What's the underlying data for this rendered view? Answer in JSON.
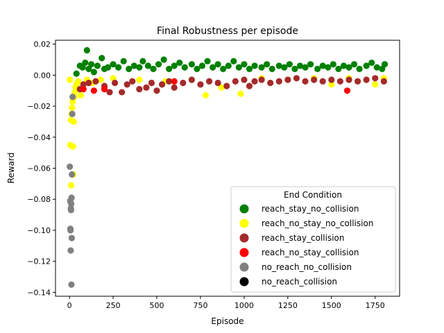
{
  "chart_data": {
    "type": "scatter",
    "title": "Final Robustness per episode",
    "xlabel": "Episode",
    "ylabel": "Reward",
    "xlim": [
      -80,
      1890
    ],
    "ylim": [
      -0.1425,
      0.0225
    ],
    "xticks": [
      0,
      250,
      500,
      750,
      1000,
      1250,
      1500,
      1750
    ],
    "yticks": [
      -0.14,
      -0.12,
      -0.1,
      -0.08,
      -0.06,
      -0.04,
      -0.02,
      0.0,
      0.02
    ],
    "ytick_labels": [
      "−0.14",
      "−0.12",
      "−0.10",
      "−0.08",
      "−0.06",
      "−0.04",
      "−0.02",
      "0.00",
      "0.02"
    ],
    "grid": false,
    "legend_title": "End Condition",
    "legend_position": "lower-right",
    "series": [
      {
        "name": "reach_stay_no_collision",
        "color": "#008000",
        "points": [
          [
            40,
            0.001
          ],
          [
            60,
            0.006
          ],
          [
            75,
            0.005
          ],
          [
            90,
            0.008
          ],
          [
            100,
            0.016
          ],
          [
            110,
            0.004
          ],
          [
            125,
            0.007
          ],
          [
            140,
            0.002
          ],
          [
            160,
            0.006
          ],
          [
            185,
            0.011
          ],
          [
            200,
            0.004
          ],
          [
            220,
            0.005
          ],
          [
            250,
            0.007
          ],
          [
            280,
            0.005
          ],
          [
            310,
            0.009
          ],
          [
            340,
            0.004
          ],
          [
            370,
            0.006
          ],
          [
            400,
            0.005
          ],
          [
            420,
            0.009
          ],
          [
            450,
            0.006
          ],
          [
            480,
            0.004
          ],
          [
            510,
            0.007
          ],
          [
            540,
            0.01
          ],
          [
            570,
            0.004
          ],
          [
            600,
            0.006
          ],
          [
            630,
            0.008
          ],
          [
            660,
            0.005
          ],
          [
            700,
            0.007
          ],
          [
            730,
            0.004
          ],
          [
            760,
            0.006
          ],
          [
            790,
            0.009
          ],
          [
            820,
            0.005
          ],
          [
            850,
            0.007
          ],
          [
            880,
            0.004
          ],
          [
            910,
            0.006
          ],
          [
            940,
            0.009
          ],
          [
            970,
            0.005
          ],
          [
            1000,
            0.007
          ],
          [
            1030,
            0.004
          ],
          [
            1060,
            0.006
          ],
          [
            1100,
            0.005
          ],
          [
            1130,
            0.007
          ],
          [
            1160,
            0.004
          ],
          [
            1200,
            0.006
          ],
          [
            1230,
            0.005
          ],
          [
            1260,
            0.007
          ],
          [
            1290,
            0.004
          ],
          [
            1320,
            0.006
          ],
          [
            1350,
            0.005
          ],
          [
            1380,
            0.007
          ],
          [
            1420,
            0.004
          ],
          [
            1450,
            0.006
          ],
          [
            1480,
            0.005
          ],
          [
            1510,
            0.007
          ],
          [
            1540,
            0.004
          ],
          [
            1570,
            0.006
          ],
          [
            1600,
            0.005
          ],
          [
            1630,
            0.007
          ],
          [
            1660,
            0.004
          ],
          [
            1700,
            0.006
          ],
          [
            1730,
            0.008
          ],
          [
            1760,
            0.005
          ],
          [
            1790,
            0.004
          ],
          [
            1805,
            0.007
          ]
        ]
      },
      {
        "name": "reach_no_stay_no_collision",
        "color": "#ffff00",
        "points": [
          [
            2,
            -0.003
          ],
          [
            5,
            -0.045
          ],
          [
            8,
            -0.029
          ],
          [
            10,
            -0.071
          ],
          [
            12,
            -0.025
          ],
          [
            15,
            -0.021
          ],
          [
            18,
            -0.017
          ],
          [
            20,
            -0.046
          ],
          [
            22,
            -0.064
          ],
          [
            25,
            -0.03
          ],
          [
            28,
            -0.014
          ],
          [
            30,
            -0.011
          ],
          [
            35,
            -0.008
          ],
          [
            40,
            -0.006
          ],
          [
            50,
            -0.004
          ],
          [
            65,
            -0.013
          ],
          [
            80,
            -0.006
          ],
          [
            100,
            -0.003
          ],
          [
            130,
            -0.005
          ],
          [
            180,
            -0.003
          ],
          [
            250,
            -0.002
          ],
          [
            400,
            -0.003
          ],
          [
            550,
            -0.004
          ],
          [
            700,
            -0.003
          ],
          [
            780,
            -0.013
          ],
          [
            870,
            -0.008
          ],
          [
            980,
            -0.012
          ],
          [
            1100,
            -0.002
          ],
          [
            1250,
            -0.003
          ],
          [
            1400,
            -0.002
          ],
          [
            1500,
            -0.006
          ],
          [
            1600,
            -0.002
          ],
          [
            1700,
            -0.003
          ],
          [
            1750,
            -0.006
          ],
          [
            1800,
            -0.002
          ]
        ]
      },
      {
        "name": "reach_stay_collision",
        "color": "#a52a2a",
        "points": [
          [
            60,
            -0.009
          ],
          [
            80,
            -0.006
          ],
          [
            110,
            -0.005
          ],
          [
            150,
            -0.004
          ],
          [
            200,
            -0.007
          ],
          [
            230,
            -0.011
          ],
          [
            260,
            -0.005
          ],
          [
            300,
            -0.011
          ],
          [
            330,
            -0.006
          ],
          [
            360,
            -0.004
          ],
          [
            400,
            -0.009
          ],
          [
            440,
            -0.008
          ],
          [
            470,
            -0.005
          ],
          [
            500,
            -0.01
          ],
          [
            530,
            -0.006
          ],
          [
            570,
            -0.004
          ],
          [
            600,
            -0.008
          ],
          [
            650,
            -0.005
          ],
          [
            700,
            -0.003
          ],
          [
            750,
            -0.006
          ],
          [
            800,
            -0.004
          ],
          [
            850,
            -0.005
          ],
          [
            900,
            -0.007
          ],
          [
            950,
            -0.004
          ],
          [
            1000,
            -0.003
          ],
          [
            1030,
            -0.007
          ],
          [
            1060,
            -0.004
          ],
          [
            1100,
            -0.003
          ],
          [
            1150,
            -0.005
          ],
          [
            1200,
            -0.004
          ],
          [
            1250,
            -0.003
          ],
          [
            1300,
            -0.002
          ],
          [
            1350,
            -0.004
          ],
          [
            1400,
            -0.003
          ],
          [
            1450,
            -0.004
          ],
          [
            1500,
            -0.003
          ],
          [
            1550,
            -0.004
          ],
          [
            1600,
            -0.003
          ],
          [
            1650,
            -0.004
          ],
          [
            1700,
            -0.003
          ],
          [
            1750,
            -0.002
          ],
          [
            1800,
            -0.004
          ]
        ]
      },
      {
        "name": "reach_no_stay_collision",
        "color": "#ff0000",
        "points": [
          [
            80,
            -0.009
          ],
          [
            140,
            -0.01
          ],
          [
            200,
            -0.009
          ],
          [
            600,
            -0.004
          ],
          [
            1590,
            -0.01
          ]
        ]
      },
      {
        "name": "no_reach_no_collision",
        "color": "#808080",
        "points": [
          [
            2,
            -0.059
          ],
          [
            4,
            -0.081
          ],
          [
            5,
            -0.099
          ],
          [
            6,
            -0.1
          ],
          [
            7,
            -0.113
          ],
          [
            8,
            -0.086
          ],
          [
            9,
            -0.087
          ],
          [
            10,
            -0.083
          ],
          [
            11,
            -0.135
          ],
          [
            12,
            -0.079
          ],
          [
            13,
            -0.105
          ],
          [
            14,
            -0.064
          ],
          [
            16,
            -0.025
          ],
          [
            18,
            -0.014
          ]
        ]
      },
      {
        "name": "no_reach_collision",
        "color": "#000000",
        "points": []
      }
    ]
  }
}
